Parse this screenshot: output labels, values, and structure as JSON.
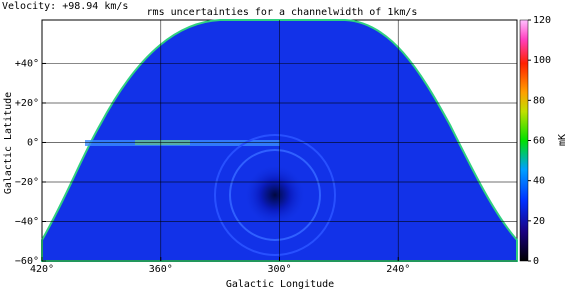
{
  "chart_data": {
    "type": "map",
    "velocity_label": "Velocity: +98.94 km/s",
    "title": "rms uncertainties for a channelwidth of 1km/s",
    "x_label": "Galactic Longitude",
    "y_label": "Galactic Latitude",
    "xlim": [
      420,
      180
    ],
    "xticks": [
      {
        "value": 420,
        "label": "420°"
      },
      {
        "value": 360,
        "label": "360°"
      },
      {
        "value": 300,
        "label": "300°"
      },
      {
        "value": 240,
        "label": "240°"
      }
    ],
    "ylim": [
      -60,
      62
    ],
    "yticks": [
      {
        "value": -60,
        "label": "−60°"
      },
      {
        "value": -40,
        "label": "−40°"
      },
      {
        "value": -20,
        "label": "−20°"
      },
      {
        "value": 0,
        "label": "0°"
      },
      {
        "value": 20,
        "label": "+20°"
      },
      {
        "value": 40,
        "label": "+40°"
      }
    ],
    "grid": true,
    "colorbar_label": "mK",
    "clim": [
      0,
      120
    ],
    "cticks": [
      0,
      20,
      40,
      60,
      80,
      100,
      120
    ]
  }
}
